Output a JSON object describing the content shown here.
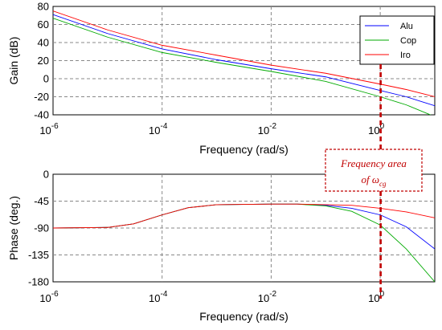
{
  "chart_data": [
    {
      "type": "line",
      "title": "",
      "xlabel": "Frequency (rad/s)",
      "ylabel": "Gain (dB)",
      "x_scale": "log",
      "xlim": [
        1e-06,
        10
      ],
      "ylim": [
        -40,
        80
      ],
      "x_tick_labels": [
        {
          "base": "10",
          "exp": "-6"
        },
        {
          "base": "10",
          "exp": "-4"
        },
        {
          "base": "10",
          "exp": "-2"
        },
        {
          "base": "10",
          "exp": "0"
        }
      ],
      "y_tick_labels": [
        "80",
        "60",
        "40",
        "20",
        "0",
        "-20",
        "-40"
      ],
      "grid": true,
      "legend_position": "top-right",
      "x": [
        1e-06,
        1e-05,
        0.0001,
        0.001,
        0.01,
        0.1,
        1,
        3,
        10
      ],
      "series": [
        {
          "name": "Alu",
          "color": "#0000ff",
          "values": [
            71,
            50,
            33,
            21,
            11,
            2,
            -13,
            -20,
            -30
          ]
        },
        {
          "name": "Cop",
          "color": "#00aa00",
          "values": [
            67,
            46,
            29,
            18,
            8,
            -3,
            -20,
            -29,
            -42
          ]
        },
        {
          "name": "Iro",
          "color": "#ff0000",
          "values": [
            75,
            54,
            37,
            26,
            15,
            6,
            -6,
            -12,
            -20
          ]
        }
      ]
    },
    {
      "type": "line",
      "title": "",
      "xlabel": "Frequency (rad/s)",
      "ylabel": "Phase (deg.)",
      "x_scale": "log",
      "xlim": [
        1e-06,
        10
      ],
      "ylim": [
        -180,
        0
      ],
      "x_tick_labels": [
        {
          "base": "10",
          "exp": "-6"
        },
        {
          "base": "10",
          "exp": "-4"
        },
        {
          "base": "10",
          "exp": "-2"
        },
        {
          "base": "10",
          "exp": "0"
        }
      ],
      "y_tick_labels": [
        "0",
        "-45",
        "-90",
        "-135",
        "-180"
      ],
      "grid": true,
      "x": [
        1e-06,
        1e-05,
        3e-05,
        0.0001,
        0.0003,
        0.001,
        0.01,
        0.03,
        0.1,
        0.3,
        1,
        3,
        10
      ],
      "series": [
        {
          "name": "Alu",
          "color": "#0000ff",
          "values": [
            -90,
            -89,
            -83,
            -68,
            -56,
            -51,
            -50,
            -50,
            -52,
            -57,
            -68,
            -88,
            -125
          ]
        },
        {
          "name": "Cop",
          "color": "#00aa00",
          "values": [
            -90,
            -89,
            -83,
            -68,
            -56,
            -51,
            -50,
            -50,
            -53,
            -62,
            -85,
            -125,
            -180
          ]
        },
        {
          "name": "Iro",
          "color": "#ff0000",
          "values": [
            -90,
            -89,
            -83,
            -68,
            -56,
            -51,
            -50,
            -50,
            -51,
            -52,
            -57,
            -63,
            -73
          ]
        }
      ]
    }
  ],
  "annotation": {
    "line1": "Frequency area",
    "line2_prefix": "of ",
    "symbol": "ω",
    "subscript": "cg",
    "marker_x": 1,
    "color": "#c00000"
  }
}
